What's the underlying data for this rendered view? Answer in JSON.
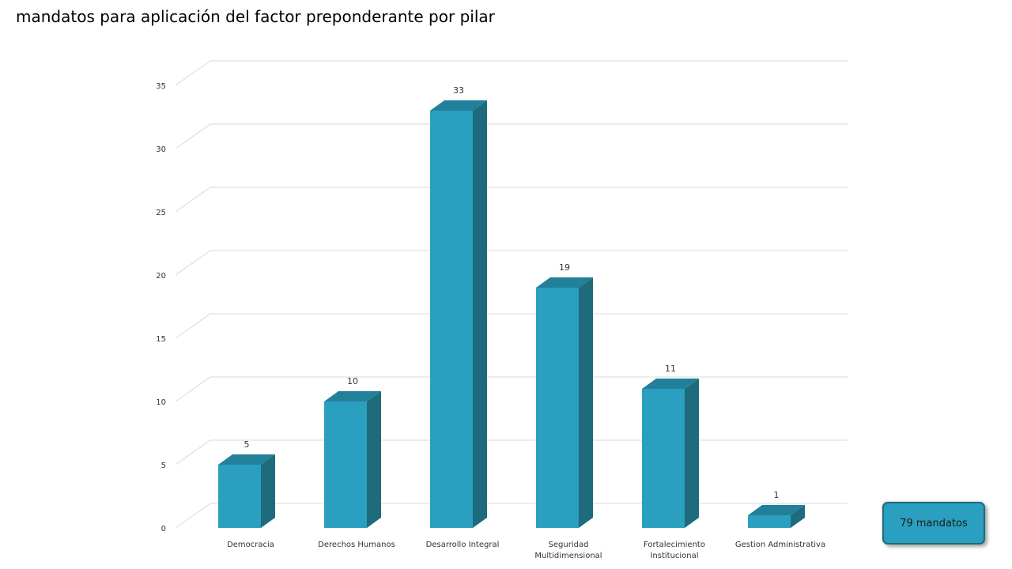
{
  "title": "mandatos para aplicación del factor preponderante por pilar",
  "total_badge": "79 mandatos",
  "colors": {
    "bar_front": "#2a9fbf",
    "bar_side": "#1e6b7b",
    "bar_top": "#23809a",
    "grid": "#d9d9d9"
  },
  "chart_data": {
    "type": "bar",
    "style": "3d-column",
    "title": "",
    "xlabel": "",
    "ylabel": "",
    "ylim": [
      0,
      35
    ],
    "yticks": [
      0,
      5,
      10,
      15,
      20,
      25,
      30,
      35
    ],
    "grid": true,
    "categories": [
      [
        "Democracia"
      ],
      [
        "Derechos Humanos"
      ],
      [
        "Desarrollo Integral"
      ],
      [
        "Seguridad",
        "Multidimensional"
      ],
      [
        "Fortalecimiento",
        "Institucional"
      ],
      [
        "Gestion Administrativa"
      ]
    ],
    "values": [
      5,
      10,
      33,
      19,
      11,
      1
    ],
    "data_labels": [
      "5",
      "10",
      "33",
      "19",
      "11",
      "1"
    ]
  }
}
